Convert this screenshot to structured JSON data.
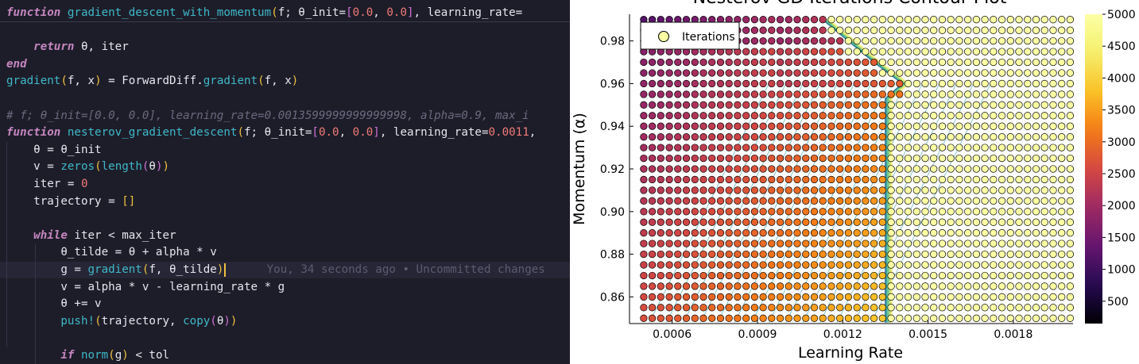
{
  "editor": {
    "lines": [
      {
        "tokens": [
          [
            "kw",
            "function"
          ],
          [
            "id",
            " "
          ],
          [
            "fn",
            "gradient_descent_with_momentum"
          ],
          [
            "b1",
            "("
          ],
          [
            "id",
            "f; θ_init="
          ],
          [
            "b2",
            "["
          ],
          [
            "num",
            "0.0"
          ],
          [
            "id",
            ", "
          ],
          [
            "num",
            "0.0"
          ],
          [
            "b2",
            "]"
          ],
          [
            "id",
            ", learning_rate="
          ]
        ],
        "divider": true
      },
      {
        "tokens": []
      },
      {
        "tokens": [
          [
            "id",
            "    "
          ],
          [
            "kw",
            "return"
          ],
          [
            "id",
            " θ, iter"
          ]
        ]
      },
      {
        "tokens": [
          [
            "kw",
            "end"
          ]
        ]
      },
      {
        "tokens": [
          [
            "fn",
            "gradient"
          ],
          [
            "b1",
            "("
          ],
          [
            "id",
            "f, x"
          ],
          [
            "b1",
            ")"
          ],
          [
            "id",
            " = ForwardDiff."
          ],
          [
            "fn",
            "gradient"
          ],
          [
            "b1",
            "("
          ],
          [
            "id",
            "f, x"
          ],
          [
            "b1",
            ")"
          ]
        ]
      },
      {
        "tokens": []
      },
      {
        "tokens": [
          [
            "cm",
            "# f; θ_init=[0.0, 0.0], learning_rate=0.0013599999999999998, alpha=0.9, max_i"
          ]
        ]
      },
      {
        "tokens": [
          [
            "kw",
            "function"
          ],
          [
            "id",
            " "
          ],
          [
            "fn",
            "nesterov_gradient_descent"
          ],
          [
            "b1",
            "("
          ],
          [
            "id",
            "f; θ_init="
          ],
          [
            "b2",
            "["
          ],
          [
            "num",
            "0.0"
          ],
          [
            "id",
            ", "
          ],
          [
            "num",
            "0.0"
          ],
          [
            "b2",
            "]"
          ],
          [
            "id",
            ", learning_rate="
          ],
          [
            "num",
            "0.0011"
          ],
          [
            "id",
            ","
          ]
        ]
      },
      {
        "tokens": [
          [
            "id",
            "    θ = θ_init"
          ]
        ]
      },
      {
        "tokens": [
          [
            "id",
            "    v = "
          ],
          [
            "fn",
            "zeros"
          ],
          [
            "b1",
            "("
          ],
          [
            "fn",
            "length"
          ],
          [
            "b2",
            "("
          ],
          [
            "id",
            "θ"
          ],
          [
            "b2",
            ")"
          ],
          [
            "b1",
            ")"
          ]
        ]
      },
      {
        "tokens": [
          [
            "id",
            "    iter = "
          ],
          [
            "num",
            "0"
          ]
        ]
      },
      {
        "tokens": [
          [
            "id",
            "    trajectory = "
          ],
          [
            "b1",
            "[]"
          ]
        ]
      },
      {
        "tokens": []
      },
      {
        "tokens": [
          [
            "id",
            "    "
          ],
          [
            "kw",
            "while"
          ],
          [
            "id",
            " iter < max_iter"
          ]
        ]
      },
      {
        "tokens": [
          [
            "id",
            "        θ_tilde = θ + alpha * v"
          ]
        ]
      },
      {
        "tokens": [
          [
            "id",
            "        g = "
          ],
          [
            "fn",
            "gradient"
          ],
          [
            "b1",
            "("
          ],
          [
            "id",
            "f, θ_tilde"
          ],
          [
            "b1",
            ")"
          ],
          [
            "cursor",
            ""
          ],
          [
            "blame",
            "      You, 34 seconds ago • Uncommitted changes"
          ]
        ],
        "current": true
      },
      {
        "tokens": [
          [
            "id",
            "        v = alpha * v - learning_rate * g"
          ]
        ]
      },
      {
        "tokens": [
          [
            "id",
            "        θ += v"
          ]
        ]
      },
      {
        "tokens": [
          [
            "id",
            "        "
          ],
          [
            "fn",
            "push!"
          ],
          [
            "b1",
            "("
          ],
          [
            "id",
            "trajectory, "
          ],
          [
            "fn",
            "copy"
          ],
          [
            "b2",
            "("
          ],
          [
            "id",
            "θ"
          ],
          [
            "b2",
            ")"
          ],
          [
            "b1",
            ")"
          ]
        ]
      },
      {
        "tokens": []
      },
      {
        "tokens": [
          [
            "id",
            "        "
          ],
          [
            "kw",
            "if"
          ],
          [
            "id",
            " "
          ],
          [
            "fn",
            "norm"
          ],
          [
            "b1",
            "("
          ],
          [
            "id",
            "g"
          ],
          [
            "b1",
            ")"
          ],
          [
            "id",
            " < tol"
          ]
        ]
      }
    ]
  },
  "chart_data": {
    "type": "scatter",
    "title": "Nesterov GD Iterations Contour Plot",
    "xlabel": "Learning Rate",
    "ylabel": "Momentum (α)",
    "xlim": [
      0.00045,
      0.00201
    ],
    "ylim": [
      0.8475,
      0.9925
    ],
    "xticks": [
      "0.0006",
      "0.0009",
      "0.0012",
      "0.0015",
      "0.0018"
    ],
    "xtick_values": [
      0.0006,
      0.0009,
      0.0012,
      0.0015,
      0.0018
    ],
    "yticks": [
      "0.86",
      "0.88",
      "0.90",
      "0.92",
      "0.94",
      "0.96",
      "0.98"
    ],
    "ytick_values": [
      0.86,
      0.88,
      0.9,
      0.92,
      0.94,
      0.96,
      0.98
    ],
    "grid": {
      "x_start": 0.0005,
      "x_step": 3e-05,
      "x_count": 51,
      "y_start": 0.85,
      "y_step": 0.005,
      "y_count": 29
    },
    "colorbar": {
      "ticks": [
        "500",
        "1000",
        "1500",
        "2000",
        "2500",
        "3000",
        "3500",
        "4000",
        "4500",
        "5000"
      ],
      "tick_values": [
        500,
        1000,
        1500,
        2000,
        2500,
        3000,
        3500,
        4000,
        4500,
        5000
      ],
      "min": 150,
      "max": 5000
    },
    "legend": {
      "label": "Iterations",
      "placement": "top-left"
    },
    "colors": {
      "low": "#000004",
      "mid": "#b73779",
      "high": "#fcffa4"
    }
  }
}
